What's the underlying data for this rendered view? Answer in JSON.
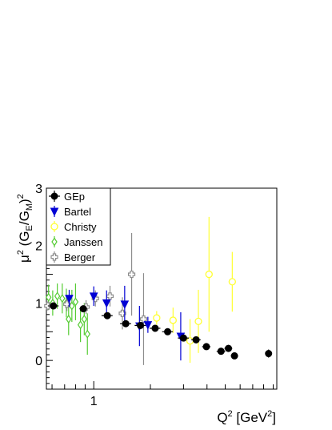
{
  "chart_data": {
    "type": "scatter",
    "title": "",
    "xlabel": {
      "base": "Q",
      "sup": "2",
      "unit_open": " [GeV",
      "unit_sup": "2",
      "unit_close": "]"
    },
    "ylabel": {
      "mu": "μ",
      "mu_sup": "2",
      "open": " (G",
      "sub_e": "E",
      "slash": "/G",
      "sub_m": "M",
      "close": ")",
      "sup": "2"
    },
    "x_scale": "log",
    "xlim": [
      0.56,
      9.4
    ],
    "ylim": [
      -0.5,
      3.0
    ],
    "x_ticks": [
      {
        "value": 1,
        "label": "1"
      }
    ],
    "y_ticks": [
      {
        "value": 0,
        "label": "0"
      },
      {
        "value": 1,
        "label": "1"
      },
      {
        "value": 2,
        "label": "2"
      },
      {
        "value": 3,
        "label": "3"
      }
    ],
    "legend_position": "top-left",
    "series": [
      {
        "name": "GEp",
        "color": "#000000",
        "marker": "filled-circle",
        "points": [
          {
            "x": 0.61,
            "y": 0.95,
            "err": 0.04,
            "xerr": 0.04
          },
          {
            "x": 0.88,
            "y": 0.9,
            "err": 0.04,
            "xerr": 0.04
          },
          {
            "x": 1.18,
            "y": 0.78,
            "err": 0.04,
            "xerr": 0.08
          },
          {
            "x": 1.48,
            "y": 0.64,
            "err": 0.04,
            "xerr": 0.1
          },
          {
            "x": 1.77,
            "y": 0.61,
            "err": 0.04,
            "xerr": 0.12
          },
          {
            "x": 2.12,
            "y": 0.56,
            "err": 0.04,
            "xerr": 0.14
          },
          {
            "x": 2.47,
            "y": 0.5,
            "err": 0.04,
            "xerr": 0.16
          },
          {
            "x": 3.0,
            "y": 0.39,
            "err": 0.05,
            "xerr": 0.2
          },
          {
            "x": 3.5,
            "y": 0.36,
            "err": 0.06,
            "xerr": 0.2
          },
          {
            "x": 3.97,
            "y": 0.24,
            "err": 0.05,
            "xerr": 0.2
          },
          {
            "x": 4.75,
            "y": 0.16,
            "err": 0.05,
            "xerr": 0.25
          },
          {
            "x": 5.2,
            "y": 0.21,
            "err": 0.06,
            "xerr": 0.25
          },
          {
            "x": 5.6,
            "y": 0.08,
            "err": 0.05,
            "xerr": 0.25
          },
          {
            "x": 8.5,
            "y": 0.12,
            "err": 0.07,
            "xerr": 0.3
          }
        ]
      },
      {
        "name": "Bartel",
        "color": "#0000d4",
        "marker": "filled-down-triangle",
        "points": [
          {
            "x": 0.74,
            "y": 1.08,
            "err": 0.15
          },
          {
            "x": 1.0,
            "y": 1.12,
            "err": 0.17
          },
          {
            "x": 1.17,
            "y": 1.0,
            "err": 0.22
          },
          {
            "x": 1.46,
            "y": 0.98,
            "err": 0.32
          },
          {
            "x": 1.75,
            "y": 0.6,
            "err": 0.35
          },
          {
            "x": 1.94,
            "y": 0.62,
            "err": 0.14
          },
          {
            "x": 2.9,
            "y": 0.42,
            "err": 0.42
          }
        ]
      },
      {
        "name": "Christy",
        "color": "#ffff33",
        "marker": "open-circle",
        "points": [
          {
            "x": 2.16,
            "y": 0.74,
            "err": 0.12
          },
          {
            "x": 2.64,
            "y": 0.7,
            "err": 0.22
          },
          {
            "x": 3.25,
            "y": 0.34,
            "err": 0.38
          },
          {
            "x": 3.6,
            "y": 0.68,
            "err": 0.55
          },
          {
            "x": 4.1,
            "y": 1.5,
            "err": 1.0
          },
          {
            "x": 5.45,
            "y": 1.37,
            "err": 0.52
          }
        ]
      },
      {
        "name": "Janssen",
        "color": "#55cc33",
        "marker": "open-diamond",
        "points": [
          {
            "x": 0.575,
            "y": 1.1,
            "err": 0.22
          },
          {
            "x": 0.605,
            "y": 1.0,
            "err": 0.22
          },
          {
            "x": 0.64,
            "y": 1.12,
            "err": 0.22
          },
          {
            "x": 0.68,
            "y": 1.08,
            "err": 0.26
          },
          {
            "x": 0.715,
            "y": 1.0,
            "err": 0.25
          },
          {
            "x": 0.735,
            "y": 0.72,
            "err": 0.28
          },
          {
            "x": 0.765,
            "y": 0.95,
            "err": 0.28
          },
          {
            "x": 0.8,
            "y": 1.02,
            "err": 0.32
          },
          {
            "x": 0.85,
            "y": 0.62,
            "err": 0.3
          },
          {
            "x": 0.89,
            "y": 0.72,
            "err": 0.28
          },
          {
            "x": 0.925,
            "y": 0.46,
            "err": 0.36
          }
        ]
      },
      {
        "name": "Berger",
        "color": "#8c8c8c",
        "marker": "open-cross",
        "points": [
          {
            "x": 0.57,
            "y": 0.95,
            "err": 0.08
          },
          {
            "x": 0.72,
            "y": 0.98,
            "err": 0.12
          },
          {
            "x": 0.91,
            "y": 0.93,
            "err": 0.12
          },
          {
            "x": 1.02,
            "y": 1.08,
            "err": 0.14
          },
          {
            "x": 1.22,
            "y": 1.12,
            "err": 0.18
          },
          {
            "x": 1.42,
            "y": 0.82,
            "err": 0.28
          },
          {
            "x": 1.59,
            "y": 1.5,
            "err": 0.72
          },
          {
            "x": 1.84,
            "y": 0.72,
            "err": 0.8
          }
        ]
      }
    ]
  }
}
